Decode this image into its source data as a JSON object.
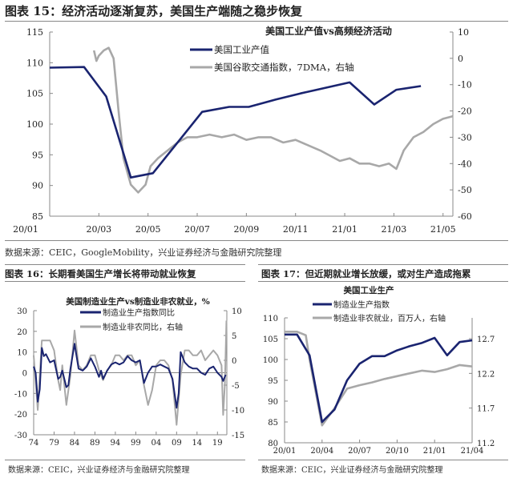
{
  "headers": {
    "fig15": "图表 15：经济活动逐渐复苏，美国生产端随之稳步恢复",
    "fig16": "图表 16：长期看美国生产增长将带动就业恢复",
    "fig17": "图表 17：但近期就业增长放缓，或对生产造成拖累",
    "source15": "数据来源：CEIC，GoogleMobility，兴业证券经济与金融研究院整理",
    "source16": "数据来源：CEIC，兴业证券经济与金融研究院整理",
    "source17": "数据来源：CEIC，兴业证券经济与金融研究院整理"
  },
  "colors": {
    "navy": "#1a2470",
    "gray": "#a8a8a8"
  },
  "chart_data": [
    {
      "type": "line",
      "title": "美国工业产值vs高频经济活动",
      "xticks": [
        {
          "m": 0,
          "label": "20/01"
        },
        {
          "m": 2,
          "label": "20/03"
        },
        {
          "m": 4,
          "label": "20/05"
        },
        {
          "m": 6,
          "label": "20/07"
        },
        {
          "m": 8,
          "label": "20/09"
        },
        {
          "m": 10,
          "label": "20/11"
        },
        {
          "m": 12,
          "label": "21/01"
        },
        {
          "m": 14,
          "label": "21/03"
        },
        {
          "m": 16,
          "label": "21/05"
        }
      ],
      "xlim": [
        0,
        16.4
      ],
      "ylim": [
        85,
        115
      ],
      "y2lim": [
        -60,
        10
      ],
      "yticks": [
        85,
        90,
        95,
        100,
        105,
        110,
        115
      ],
      "y2ticks": [
        -60,
        -50,
        -40,
        -30,
        -20,
        -10,
        0,
        10
      ],
      "series": [
        {
          "name": "美国工业产值",
          "axis": "left",
          "x": [
            0,
            1.4,
            2.3,
            3.3,
            4.2,
            5.3,
            6.2,
            7.3,
            8.1,
            9.2,
            10.2,
            11.1,
            12.2,
            13.2,
            14.1,
            15.1
          ],
          "y": [
            109.2,
            109.3,
            104.5,
            91.3,
            92,
            97.5,
            102,
            102.8,
            102.8,
            104,
            105,
            105.8,
            106.8,
            103.2,
            105.6,
            106.2
          ]
        },
        {
          "name": "美国谷歌交通指数，7DMA，右轴",
          "axis": "right",
          "x": [
            1.8,
            1.9,
            2.0,
            2.2,
            2.4,
            2.6,
            2.8,
            3.0,
            3.3,
            3.6,
            3.9,
            4.1,
            4.4,
            4.8,
            5.2,
            5.6,
            6.0,
            6.5,
            7.0,
            7.5,
            8.0,
            8.5,
            9.0,
            9.5,
            10.0,
            10.5,
            11.0,
            11.4,
            11.8,
            12.2,
            12.6,
            13.0,
            13.4,
            13.8,
            14.1,
            14.4,
            14.8,
            15.2,
            15.6,
            16.0,
            16.4
          ],
          "y": [
            3,
            -1,
            1,
            3,
            4,
            0,
            -20,
            -38,
            -48,
            -51,
            -48,
            -41,
            -38,
            -35,
            -32,
            -30,
            -30,
            -29,
            -30,
            -29,
            -31,
            -30,
            -30,
            -32,
            -31,
            -33,
            -35,
            -37,
            -39,
            -38,
            -40,
            -40,
            -41,
            -40,
            -42,
            -35,
            -30,
            -28,
            -25,
            -23,
            -22
          ]
        }
      ]
    },
    {
      "type": "line",
      "title": "美国制造业生产vs制造业非农就业，%",
      "xticks": [
        1974,
        1979,
        1984,
        1989,
        1994,
        1999,
        2004,
        2009,
        2014,
        2019
      ],
      "xticklabels": [
        "74",
        "79",
        "84",
        "89",
        "94",
        "99",
        "04",
        "09",
        "14",
        "19"
      ],
      "xlim": [
        1974,
        2021.3
      ],
      "ylim": [
        -30,
        30
      ],
      "y2lim": [
        -15,
        10
      ],
      "yticks": [
        -30,
        -20,
        -10,
        0,
        10,
        20,
        30
      ],
      "y2ticks": [
        -15,
        -10,
        -5,
        0,
        5,
        10
      ],
      "series": [
        {
          "name": "制造业生产指数同比",
          "axis": "left",
          "x": [
            1974,
            1974.5,
            1975,
            1975.5,
            1976,
            1976.5,
            1977,
            1978,
            1979,
            1980,
            1980.5,
            1981,
            1982,
            1982.5,
            1983,
            1984,
            1984.5,
            1985,
            1986,
            1987,
            1988,
            1989,
            1990,
            1990.5,
            1991,
            1992,
            1993,
            1994,
            1995,
            1996,
            1997,
            1998,
            1999,
            2000,
            2001,
            2002,
            2003,
            2004,
            2005,
            2006,
            2007,
            2008,
            2009,
            2009.5,
            2010,
            2011,
            2012,
            2013,
            2014,
            2015,
            2016,
            2017,
            2018,
            2019,
            2020,
            2020.4,
            2021
          ],
          "y": [
            3,
            0,
            -14,
            -8,
            12,
            8,
            9,
            5,
            6,
            -3,
            -2,
            1,
            -7,
            -6,
            2,
            14,
            8,
            2,
            1,
            3,
            7,
            3,
            -2,
            1,
            -3,
            1,
            4,
            5,
            4,
            5,
            8,
            6,
            5,
            6,
            -5,
            0,
            3,
            3,
            4,
            3,
            2,
            -3,
            -17,
            -10,
            10,
            5,
            3,
            2,
            2,
            0,
            -1,
            2,
            3,
            0,
            -2,
            -4,
            -1
          ]
        },
        {
          "name": "制造业非农同比，右轴",
          "axis": "right",
          "x": [
            1974,
            1975,
            1976,
            1977,
            1978,
            1979,
            1980,
            1980.5,
            1981,
            1982,
            1983,
            1984,
            1985,
            1986,
            1987,
            1988,
            1989,
            1990,
            1991,
            1992,
            1993,
            1994,
            1995,
            1996,
            1997,
            1998,
            1999,
            2000,
            2001,
            2002,
            2003,
            2004,
            2005,
            2006,
            2007,
            2008,
            2009,
            2010,
            2011,
            2012,
            2013,
            2014,
            2015,
            2016,
            2017,
            2018,
            2019,
            2020,
            2020.4,
            2020.8,
            2021.2
          ],
          "y": [
            1,
            -10,
            4,
            4,
            4,
            2,
            -4,
            -6,
            -1,
            -9,
            -3,
            6,
            -1,
            -2,
            -1,
            1,
            1,
            -2,
            -4,
            -2,
            -1,
            1,
            1,
            0,
            1,
            1,
            -1,
            0,
            -5,
            -9,
            -6,
            -1,
            0,
            0,
            -1,
            -4,
            -13,
            -3,
            2,
            2,
            1,
            1,
            2,
            0,
            1,
            2,
            1,
            -1,
            -11,
            -5,
            8
          ]
        }
      ]
    },
    {
      "type": "line",
      "title": "美国工业生产",
      "xticks": [
        0,
        3,
        6,
        9,
        12,
        15
      ],
      "xticklabels": [
        "20/01",
        "20/04",
        "20/07",
        "20/10",
        "21/01",
        "21/04"
      ],
      "xlim": [
        0,
        15
      ],
      "ylim": [
        80,
        110
      ],
      "y2lim": [
        11.2,
        13.0
      ],
      "yticks": [
        80,
        85,
        90,
        95,
        100,
        105,
        110
      ],
      "y2ticks": [
        11.2,
        11.7,
        12.2,
        12.7
      ],
      "series": [
        {
          "name": "制造业生产指数",
          "axis": "left",
          "x": [
            0,
            1,
            2,
            3,
            4,
            5,
            6,
            7,
            8,
            9,
            10,
            11,
            12,
            13,
            14,
            15
          ],
          "y": [
            106,
            106,
            101,
            85,
            88,
            95,
            99,
            100.8,
            100.8,
            102.2,
            103.2,
            104,
            105.2,
            101,
            104.2,
            104.6
          ]
        },
        {
          "name": "制造业非农就业，百万人，右轴",
          "axis": "right",
          "x": [
            0,
            1,
            1.7,
            2,
            3,
            4,
            5,
            6,
            7,
            8,
            9,
            10,
            11,
            12,
            13,
            14,
            15
          ],
          "y": [
            12.8,
            12.8,
            12.75,
            12.4,
            11.45,
            11.7,
            11.98,
            12.03,
            12.07,
            12.12,
            12.16,
            12.2,
            12.24,
            12.22,
            12.26,
            12.32,
            12.3
          ]
        }
      ]
    }
  ]
}
